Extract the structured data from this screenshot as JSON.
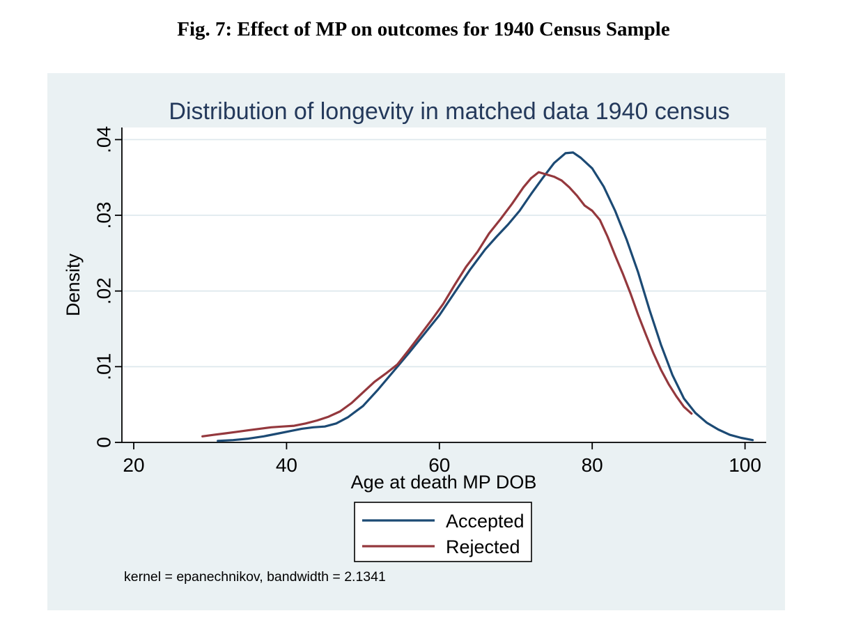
{
  "header": {
    "title": "Fig. 7: Effect of MP on outcomes for 1940 Census Sample"
  },
  "colors": {
    "figure_bg": "#eaf1f3",
    "plot_bg": "#ffffff",
    "gridline": "#dfe9ee",
    "axis": "#000000",
    "title_navy": "#24395b",
    "accepted_navy": "#1c4a74",
    "rejected_maroon": "#94383d",
    "legend_border": "#000000"
  },
  "chart_data": {
    "type": "line",
    "title": "Distribution of longevity in matched data 1940 census",
    "xlabel": "Age at death MP DOB",
    "ylabel": "Density",
    "note": "kernel = epanechnikov, bandwidth = 2.1341",
    "grid": "horizontal-only",
    "legend_position": "below-plot-center",
    "xlim": [
      18.45,
      102.77
    ],
    "ylim": [
      0,
      0.0416
    ],
    "x_ticks": [
      20,
      40,
      60,
      80,
      100
    ],
    "x_tick_labels": [
      "20",
      "40",
      "60",
      "80",
      "100"
    ],
    "y_ticks": [
      0,
      0.01,
      0.02,
      0.03,
      0.04
    ],
    "y_tick_labels": [
      "0",
      ".01",
      ".02",
      ".03",
      ".04"
    ],
    "series": [
      {
        "name": "Accepted",
        "color": "#1c4a74",
        "points": [
          [
            31,
            0.0002
          ],
          [
            33,
            0.0003
          ],
          [
            35,
            0.0005
          ],
          [
            37,
            0.0008
          ],
          [
            39,
            0.0012
          ],
          [
            40.5,
            0.0015
          ],
          [
            42,
            0.0018
          ],
          [
            43.5,
            0.002
          ],
          [
            45,
            0.0021
          ],
          [
            46.5,
            0.0025
          ],
          [
            48,
            0.0033
          ],
          [
            50,
            0.0048
          ],
          [
            52,
            0.007
          ],
          [
            54,
            0.0094
          ],
          [
            56,
            0.0118
          ],
          [
            58,
            0.0143
          ],
          [
            60,
            0.0168
          ],
          [
            62,
            0.0198
          ],
          [
            64,
            0.0228
          ],
          [
            66,
            0.0255
          ],
          [
            67.5,
            0.0272
          ],
          [
            69,
            0.0288
          ],
          [
            70.5,
            0.0306
          ],
          [
            72,
            0.0328
          ],
          [
            73.5,
            0.0349
          ],
          [
            75,
            0.0369
          ],
          [
            76.5,
            0.0382
          ],
          [
            77.5,
            0.0383
          ],
          [
            78.5,
            0.0376
          ],
          [
            80,
            0.0362
          ],
          [
            81.5,
            0.0338
          ],
          [
            83,
            0.0306
          ],
          [
            84.5,
            0.0268
          ],
          [
            86,
            0.0225
          ],
          [
            87.5,
            0.0175
          ],
          [
            89,
            0.0129
          ],
          [
            90.5,
            0.0089
          ],
          [
            92,
            0.0058
          ],
          [
            93.5,
            0.0039
          ],
          [
            95,
            0.0026
          ],
          [
            96.5,
            0.0017
          ],
          [
            98,
            0.001
          ],
          [
            99.5,
            0.0006
          ],
          [
            101,
            0.0003
          ]
        ]
      },
      {
        "name": "Rejected",
        "color": "#94383d",
        "points": [
          [
            29,
            0.0008
          ],
          [
            30.5,
            0.001
          ],
          [
            32,
            0.0012
          ],
          [
            33.5,
            0.0014
          ],
          [
            35,
            0.0016
          ],
          [
            36.5,
            0.0018
          ],
          [
            38,
            0.002
          ],
          [
            39.5,
            0.0021
          ],
          [
            41,
            0.0022
          ],
          [
            42.5,
            0.0025
          ],
          [
            44,
            0.0029
          ],
          [
            45.5,
            0.0034
          ],
          [
            47,
            0.0041
          ],
          [
            48.5,
            0.0052
          ],
          [
            50,
            0.0066
          ],
          [
            51.5,
            0.008
          ],
          [
            53,
            0.0091
          ],
          [
            54.5,
            0.0103
          ],
          [
            56,
            0.0122
          ],
          [
            57.5,
            0.0142
          ],
          [
            59,
            0.0162
          ],
          [
            60.5,
            0.0183
          ],
          [
            62,
            0.0208
          ],
          [
            63.5,
            0.0232
          ],
          [
            65,
            0.0252
          ],
          [
            66.5,
            0.0276
          ],
          [
            68,
            0.0295
          ],
          [
            69.5,
            0.0315
          ],
          [
            71,
            0.0337
          ],
          [
            72,
            0.0349
          ],
          [
            73,
            0.0357
          ],
          [
            74,
            0.0354
          ],
          [
            75,
            0.0351
          ],
          [
            76,
            0.0346
          ],
          [
            77,
            0.0337
          ],
          [
            78,
            0.0326
          ],
          [
            79,
            0.0313
          ],
          [
            80,
            0.0306
          ],
          [
            81,
            0.0294
          ],
          [
            82,
            0.0272
          ],
          [
            83,
            0.0247
          ],
          [
            84,
            0.0223
          ],
          [
            85,
            0.0197
          ],
          [
            86,
            0.0169
          ],
          [
            87,
            0.0143
          ],
          [
            88,
            0.0118
          ],
          [
            89,
            0.0096
          ],
          [
            90,
            0.0077
          ],
          [
            91,
            0.0061
          ],
          [
            92,
            0.0047
          ],
          [
            93,
            0.0038
          ]
        ]
      }
    ]
  }
}
